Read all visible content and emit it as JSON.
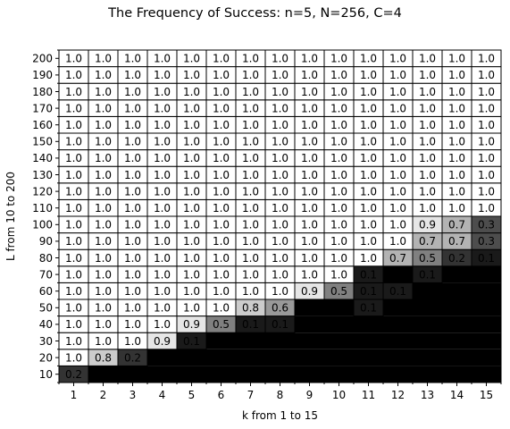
{
  "title": "The Frequency of Success: n=5, N=256, C=4",
  "chart_data": {
    "type": "heatmap",
    "title": "The Frequency of Success: n=5, N=256, C=4",
    "xlabel": "k from 1 to 15",
    "ylabel": "L from 10 to 200",
    "x": [
      1,
      2,
      3,
      4,
      5,
      6,
      7,
      8,
      9,
      10,
      11,
      12,
      13,
      14,
      15
    ],
    "y": [
      10,
      20,
      30,
      40,
      50,
      60,
      70,
      80,
      90,
      100,
      110,
      120,
      130,
      140,
      150,
      160,
      170,
      180,
      190,
      200
    ],
    "value_range": [
      0,
      1
    ],
    "colormap": "gray",
    "grid": true,
    "values": [
      [
        0.2,
        0.0,
        0.0,
        0.0,
        0.0,
        0.0,
        0.0,
        0.0,
        0.0,
        0.0,
        0.0,
        0.0,
        0.0,
        0.0,
        0.0
      ],
      [
        1.0,
        0.8,
        0.2,
        0.0,
        0.0,
        0.0,
        0.0,
        0.0,
        0.0,
        0.0,
        0.0,
        0.0,
        0.0,
        0.0,
        0.0
      ],
      [
        1.0,
        1.0,
        1.0,
        0.9,
        0.1,
        0.0,
        0.0,
        0.0,
        0.0,
        0.0,
        0.0,
        0.0,
        0.0,
        0.0,
        0.0
      ],
      [
        1.0,
        1.0,
        1.0,
        1.0,
        0.9,
        0.5,
        0.1,
        0.1,
        0.0,
        0.0,
        0.0,
        0.0,
        0.0,
        0.0,
        0.0
      ],
      [
        1.0,
        1.0,
        1.0,
        1.0,
        1.0,
        1.0,
        0.8,
        0.6,
        0.0,
        0.0,
        0.1,
        0.0,
        0.0,
        0.0,
        0.0
      ],
      [
        1.0,
        1.0,
        1.0,
        1.0,
        1.0,
        1.0,
        1.0,
        1.0,
        0.9,
        0.5,
        0.1,
        0.1,
        0.0,
        0.0,
        0.0
      ],
      [
        1.0,
        1.0,
        1.0,
        1.0,
        1.0,
        1.0,
        1.0,
        1.0,
        1.0,
        1.0,
        0.1,
        0.0,
        0.1,
        0.0,
        0.0
      ],
      [
        1.0,
        1.0,
        1.0,
        1.0,
        1.0,
        1.0,
        1.0,
        1.0,
        1.0,
        1.0,
        1.0,
        0.7,
        0.5,
        0.2,
        0.1
      ],
      [
        1.0,
        1.0,
        1.0,
        1.0,
        1.0,
        1.0,
        1.0,
        1.0,
        1.0,
        1.0,
        1.0,
        1.0,
        0.7,
        0.7,
        0.3
      ],
      [
        1.0,
        1.0,
        1.0,
        1.0,
        1.0,
        1.0,
        1.0,
        1.0,
        1.0,
        1.0,
        1.0,
        1.0,
        0.9,
        0.7,
        0.3
      ],
      [
        1.0,
        1.0,
        1.0,
        1.0,
        1.0,
        1.0,
        1.0,
        1.0,
        1.0,
        1.0,
        1.0,
        1.0,
        1.0,
        1.0,
        1.0
      ],
      [
        1.0,
        1.0,
        1.0,
        1.0,
        1.0,
        1.0,
        1.0,
        1.0,
        1.0,
        1.0,
        1.0,
        1.0,
        1.0,
        1.0,
        1.0
      ],
      [
        1.0,
        1.0,
        1.0,
        1.0,
        1.0,
        1.0,
        1.0,
        1.0,
        1.0,
        1.0,
        1.0,
        1.0,
        1.0,
        1.0,
        1.0
      ],
      [
        1.0,
        1.0,
        1.0,
        1.0,
        1.0,
        1.0,
        1.0,
        1.0,
        1.0,
        1.0,
        1.0,
        1.0,
        1.0,
        1.0,
        1.0
      ],
      [
        1.0,
        1.0,
        1.0,
        1.0,
        1.0,
        1.0,
        1.0,
        1.0,
        1.0,
        1.0,
        1.0,
        1.0,
        1.0,
        1.0,
        1.0
      ],
      [
        1.0,
        1.0,
        1.0,
        1.0,
        1.0,
        1.0,
        1.0,
        1.0,
        1.0,
        1.0,
        1.0,
        1.0,
        1.0,
        1.0,
        1.0
      ],
      [
        1.0,
        1.0,
        1.0,
        1.0,
        1.0,
        1.0,
        1.0,
        1.0,
        1.0,
        1.0,
        1.0,
        1.0,
        1.0,
        1.0,
        1.0
      ],
      [
        1.0,
        1.0,
        1.0,
        1.0,
        1.0,
        1.0,
        1.0,
        1.0,
        1.0,
        1.0,
        1.0,
        1.0,
        1.0,
        1.0,
        1.0
      ],
      [
        1.0,
        1.0,
        1.0,
        1.0,
        1.0,
        1.0,
        1.0,
        1.0,
        1.0,
        1.0,
        1.0,
        1.0,
        1.0,
        1.0,
        1.0
      ],
      [
        1.0,
        1.0,
        1.0,
        1.0,
        1.0,
        1.0,
        1.0,
        1.0,
        1.0,
        1.0,
        1.0,
        1.0,
        1.0,
        1.0,
        1.0
      ]
    ],
    "labeled_cells": [
      [
        1,
        0,
        0,
        0,
        0,
        0,
        0,
        0,
        0,
        0,
        0,
        0,
        0,
        0,
        0
      ],
      [
        1,
        1,
        1,
        0,
        0,
        0,
        0,
        0,
        0,
        0,
        0,
        0,
        0,
        0,
        0
      ],
      [
        1,
        1,
        1,
        1,
        1,
        0,
        0,
        0,
        0,
        0,
        0,
        0,
        0,
        0,
        0
      ],
      [
        1,
        1,
        1,
        1,
        1,
        1,
        1,
        1,
        0,
        0,
        0,
        0,
        0,
        0,
        0
      ],
      [
        1,
        1,
        1,
        1,
        1,
        1,
        1,
        1,
        0,
        0,
        1,
        0,
        0,
        0,
        0
      ],
      [
        1,
        1,
        1,
        1,
        1,
        1,
        1,
        1,
        1,
        1,
        1,
        1,
        0,
        0,
        0
      ],
      [
        1,
        1,
        1,
        1,
        1,
        1,
        1,
        1,
        1,
        1,
        1,
        0,
        1,
        0,
        0
      ],
      [
        1,
        1,
        1,
        1,
        1,
        1,
        1,
        1,
        1,
        1,
        1,
        1,
        1,
        1,
        1
      ],
      [
        1,
        1,
        1,
        1,
        1,
        1,
        1,
        1,
        1,
        1,
        1,
        1,
        1,
        1,
        1
      ],
      [
        1,
        1,
        1,
        1,
        1,
        1,
        1,
        1,
        1,
        1,
        1,
        1,
        1,
        1,
        1
      ],
      [
        1,
        1,
        1,
        1,
        1,
        1,
        1,
        1,
        1,
        1,
        1,
        1,
        1,
        1,
        1
      ],
      [
        1,
        1,
        1,
        1,
        1,
        1,
        1,
        1,
        1,
        1,
        1,
        1,
        1,
        1,
        1
      ],
      [
        1,
        1,
        1,
        1,
        1,
        1,
        1,
        1,
        1,
        1,
        1,
        1,
        1,
        1,
        1
      ],
      [
        1,
        1,
        1,
        1,
        1,
        1,
        1,
        1,
        1,
        1,
        1,
        1,
        1,
        1,
        1
      ],
      [
        1,
        1,
        1,
        1,
        1,
        1,
        1,
        1,
        1,
        1,
        1,
        1,
        1,
        1,
        1
      ],
      [
        1,
        1,
        1,
        1,
        1,
        1,
        1,
        1,
        1,
        1,
        1,
        1,
        1,
        1,
        1
      ],
      [
        1,
        1,
        1,
        1,
        1,
        1,
        1,
        1,
        1,
        1,
        1,
        1,
        1,
        1,
        1
      ],
      [
        1,
        1,
        1,
        1,
        1,
        1,
        1,
        1,
        1,
        1,
        1,
        1,
        1,
        1,
        1
      ],
      [
        1,
        1,
        1,
        1,
        1,
        1,
        1,
        1,
        1,
        1,
        1,
        1,
        1,
        1,
        1
      ],
      [
        1,
        1,
        1,
        1,
        1,
        1,
        1,
        1,
        1,
        1,
        1,
        1,
        1,
        1,
        1
      ]
    ]
  }
}
